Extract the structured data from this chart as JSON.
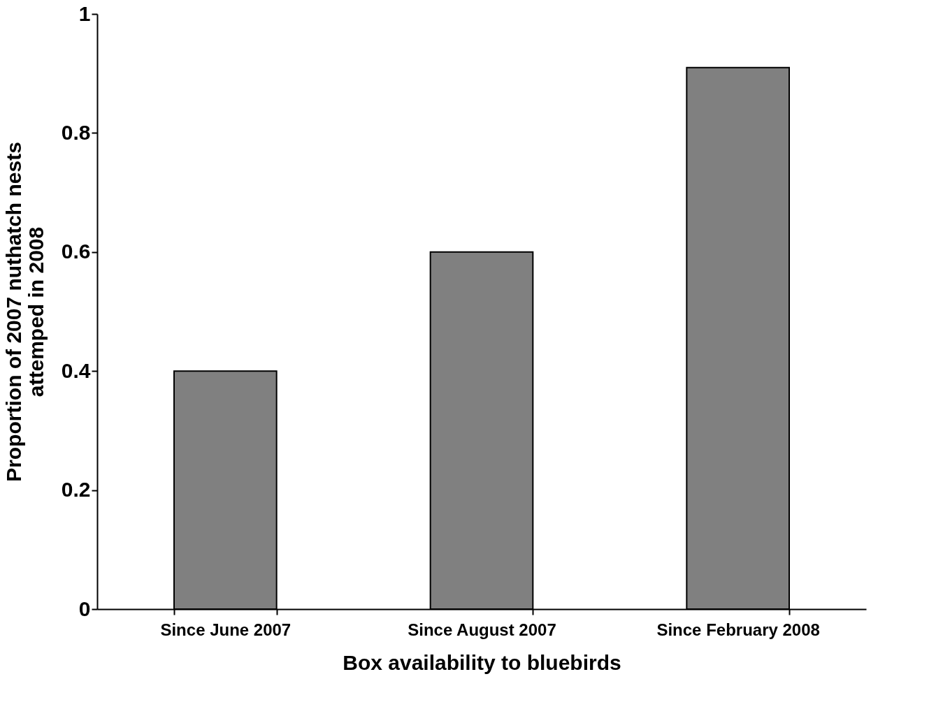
{
  "chart_data": {
    "type": "bar",
    "xlabel": "Box availability to bluebirds",
    "ylabel": "Proportion of 2007 nuthatch nests attemped in 2008",
    "categories": [
      "Since June 2007",
      "Since August 2007",
      "Since February 2008"
    ],
    "values": [
      0.4,
      0.6,
      0.91
    ],
    "color": "#808080",
    "ylim": [
      0,
      1
    ],
    "yticks": [
      0,
      0.2,
      0.4,
      0.6,
      0.8,
      1
    ],
    "grid": false
  }
}
